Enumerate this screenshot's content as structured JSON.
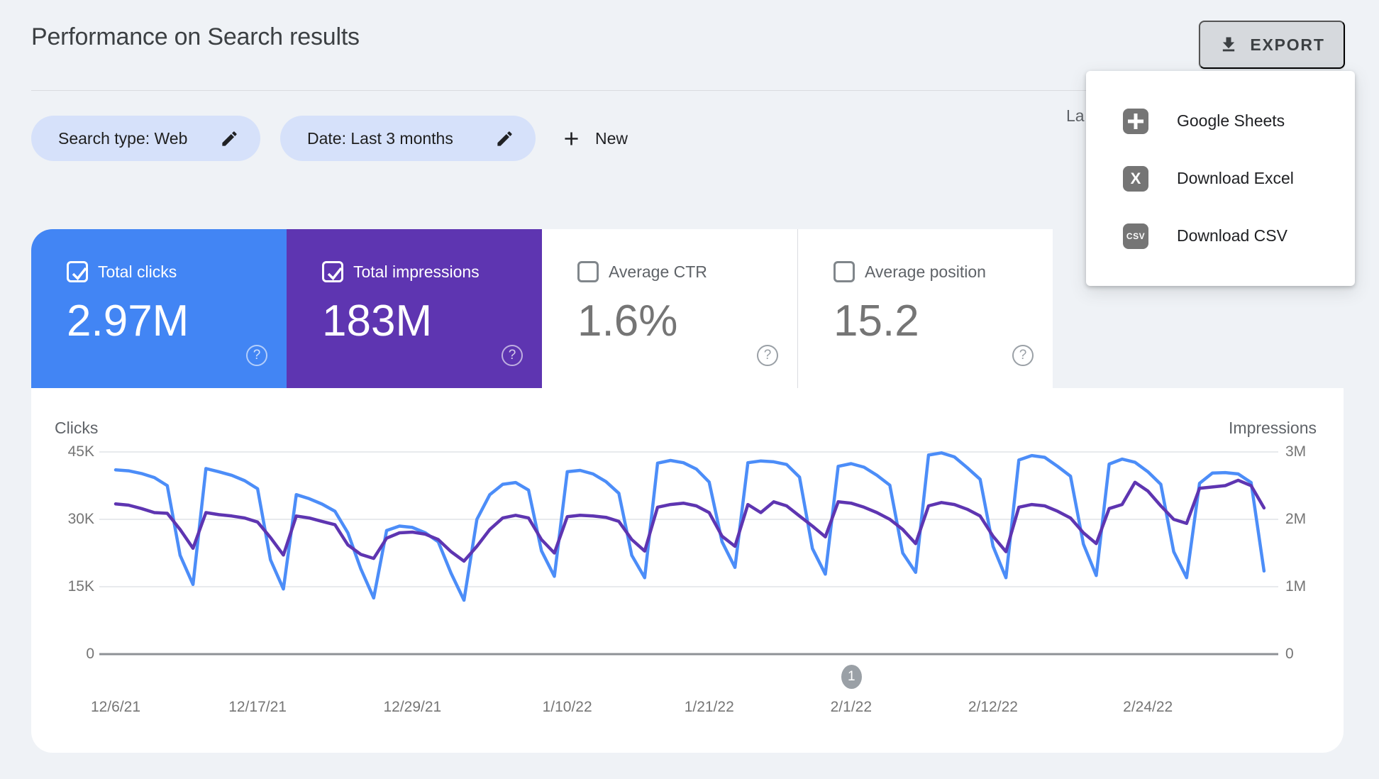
{
  "page": {
    "title": "Performance on Search results"
  },
  "toolbar": {
    "export_label": "EXPORT",
    "last_updated_partial": "La"
  },
  "filters": {
    "chips": [
      {
        "label": "Search type: Web"
      },
      {
        "label": "Date: Last 3 months"
      }
    ],
    "new_label": "New"
  },
  "export_menu": {
    "items": [
      {
        "label": "Google Sheets",
        "icon": "google-sheets-icon",
        "glyph": ""
      },
      {
        "label": "Download Excel",
        "icon": "excel-icon",
        "glyph": "X"
      },
      {
        "label": "Download CSV",
        "icon": "csv-icon",
        "glyph": "CSV"
      }
    ]
  },
  "metrics": [
    {
      "label": "Total clicks",
      "value": "2.97M",
      "checked": true,
      "color": "#4285F4"
    },
    {
      "label": "Total impressions",
      "value": "183M",
      "checked": true,
      "color": "#5E35B1"
    },
    {
      "label": "Average CTR",
      "value": "1.6%",
      "checked": false,
      "color": ""
    },
    {
      "label": "Average position",
      "value": "15.2",
      "checked": false,
      "color": ""
    }
  ],
  "chart_data": {
    "type": "line",
    "start_date": "12/6/21",
    "left_axis": {
      "label": "Clicks",
      "unit": "K",
      "max": 45,
      "ticks": [
        "45K",
        "30K",
        "15K",
        "0"
      ]
    },
    "right_axis": {
      "label": "Impressions",
      "unit": "M",
      "max": 3,
      "ticks": [
        "3M",
        "2M",
        "1M",
        "0"
      ]
    },
    "grid": true,
    "x_labels": [
      {
        "text": "12/6/21",
        "day": 0
      },
      {
        "text": "12/17/21",
        "day": 11
      },
      {
        "text": "12/29/21",
        "day": 23
      },
      {
        "text": "1/10/22",
        "day": 35
      },
      {
        "text": "1/21/22",
        "day": 46
      },
      {
        "text": "2/1/22",
        "day": 57
      },
      {
        "text": "2/12/22",
        "day": 68
      },
      {
        "text": "2/24/22",
        "day": 80
      }
    ],
    "pagination": {
      "label": "1",
      "day": 57
    },
    "series": [
      {
        "name": "Clicks",
        "axis": "left",
        "color": "#4C8DF8",
        "values": [
          41,
          40.8,
          40.2,
          39.3,
          37.5,
          22,
          15.5,
          41.3,
          40.6,
          39.8,
          38.6,
          36.8,
          21,
          14.5,
          35.5,
          34.6,
          33.4,
          31.8,
          27,
          19,
          12.5,
          27.5,
          28.5,
          28.2,
          27,
          25,
          18,
          12,
          30,
          35.5,
          37.8,
          38.2,
          36.5,
          23,
          17.3,
          40.6,
          40.9,
          40.1,
          38.4,
          35.8,
          22,
          17,
          42.5,
          43.1,
          42.6,
          41.2,
          38.3,
          25,
          19.3,
          42.6,
          43,
          42.8,
          42.2,
          39.4,
          23.5,
          17.8,
          41.8,
          42.4,
          41.6,
          39.8,
          37.6,
          22.5,
          18.2,
          44.3,
          44.8,
          43.9,
          41.5,
          38.9,
          24,
          17,
          43.2,
          44.2,
          43.8,
          41.8,
          39.6,
          24.5,
          17.5,
          42.3,
          43.4,
          42.7,
          40.6,
          37.8,
          22.8,
          17,
          38,
          40.3,
          40.4,
          40.1,
          38.2,
          18.5
        ]
      },
      {
        "name": "Impressions",
        "axis": "right",
        "color": "#5E35B1",
        "values": [
          2.23,
          2.21,
          2.16,
          2.1,
          2.09,
          1.85,
          1.57,
          2.1,
          2.07,
          2.05,
          2.02,
          1.96,
          1.73,
          1.47,
          2.05,
          2.02,
          1.97,
          1.92,
          1.62,
          1.48,
          1.42,
          1.72,
          1.8,
          1.81,
          1.78,
          1.7,
          1.52,
          1.38,
          1.6,
          1.85,
          2.02,
          2.06,
          2.02,
          1.7,
          1.5,
          2.04,
          2.06,
          2.05,
          2.03,
          1.97,
          1.7,
          1.53,
          2.18,
          2.22,
          2.24,
          2.2,
          2.1,
          1.75,
          1.6,
          2.22,
          2.1,
          2.26,
          2.2,
          2.05,
          1.9,
          1.74,
          2.26,
          2.24,
          2.18,
          2.1,
          2,
          1.85,
          1.64,
          2.2,
          2.25,
          2.22,
          2.15,
          2.05,
          1.75,
          1.52,
          2.18,
          2.22,
          2.2,
          2.12,
          2.02,
          1.8,
          1.64,
          2.16,
          2.22,
          2.55,
          2.42,
          2.2,
          2,
          1.94,
          2.46,
          2.48,
          2.5,
          2.58,
          2.5,
          2.17
        ]
      }
    ]
  }
}
